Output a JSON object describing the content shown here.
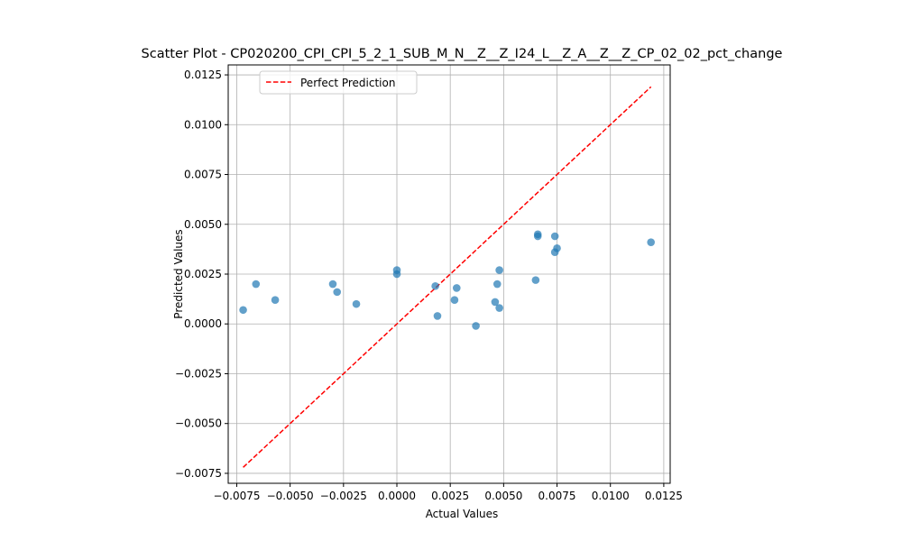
{
  "chart_data": {
    "type": "scatter",
    "title": "Scatter Plot - CP020200_CPI_CPI_5_2_1_SUB_M_N__Z__Z_I24_L__Z_A__Z__Z_CP_02_02_pct_change",
    "xlabel": "Actual Values",
    "ylabel": "Predicted Values",
    "xlim": [
      -0.0079,
      0.0128
    ],
    "ylim": [
      -0.008,
      0.013
    ],
    "x_ticks": [
      "−0.0075",
      "−0.0050",
      "−0.0025",
      "0.0000",
      "0.0025",
      "0.0050",
      "0.0075",
      "0.0100",
      "0.0125"
    ],
    "x_tick_values": [
      -0.0075,
      -0.005,
      -0.0025,
      0.0,
      0.0025,
      0.005,
      0.0075,
      0.01,
      0.0125
    ],
    "y_ticks": [
      "−0.0075",
      "−0.0050",
      "−0.0025",
      "0.0000",
      "0.0025",
      "0.0050",
      "0.0075",
      "0.0100",
      "0.0125"
    ],
    "y_tick_values": [
      -0.0075,
      -0.005,
      -0.0025,
      0.0,
      0.0025,
      0.005,
      0.0075,
      0.01,
      0.0125
    ],
    "grid": true,
    "legend": {
      "position": "top-left",
      "entries": [
        "Perfect Prediction"
      ]
    },
    "colors": {
      "points": "#1f77b4",
      "line": "#ff0000",
      "grid": "#b0b0b0"
    },
    "series": [
      {
        "values": [
          {
            "x": -0.0072,
            "y": 0.0007
          },
          {
            "x": -0.0066,
            "y": 0.002
          },
          {
            "x": -0.0057,
            "y": 0.0012
          },
          {
            "x": -0.003,
            "y": 0.002
          },
          {
            "x": -0.0028,
            "y": 0.0016
          },
          {
            "x": -0.0019,
            "y": 0.001
          },
          {
            "x": 0.0,
            "y": 0.0027
          },
          {
            "x": 0.0,
            "y": 0.0025
          },
          {
            "x": 0.0018,
            "y": 0.0019
          },
          {
            "x": 0.0019,
            "y": 0.0004
          },
          {
            "x": 0.0027,
            "y": 0.0012
          },
          {
            "x": 0.0028,
            "y": 0.0018
          },
          {
            "x": 0.0037,
            "y": -0.0001
          },
          {
            "x": 0.0046,
            "y": 0.0011
          },
          {
            "x": 0.0047,
            "y": 0.002
          },
          {
            "x": 0.0048,
            "y": 0.0027
          },
          {
            "x": 0.0048,
            "y": 0.0008
          },
          {
            "x": 0.0065,
            "y": 0.0022
          },
          {
            "x": 0.0066,
            "y": 0.0045
          },
          {
            "x": 0.0066,
            "y": 0.0044
          },
          {
            "x": 0.0074,
            "y": 0.0044
          },
          {
            "x": 0.0074,
            "y": 0.0036
          },
          {
            "x": 0.0075,
            "y": 0.0038
          },
          {
            "x": 0.0119,
            "y": 0.0041
          }
        ]
      },
      {
        "name": "Perfect Prediction",
        "type": "line",
        "style": "dashed",
        "values": [
          {
            "x": -0.0072,
            "y": -0.0072
          },
          {
            "x": 0.0119,
            "y": 0.0119
          }
        ]
      }
    ]
  }
}
